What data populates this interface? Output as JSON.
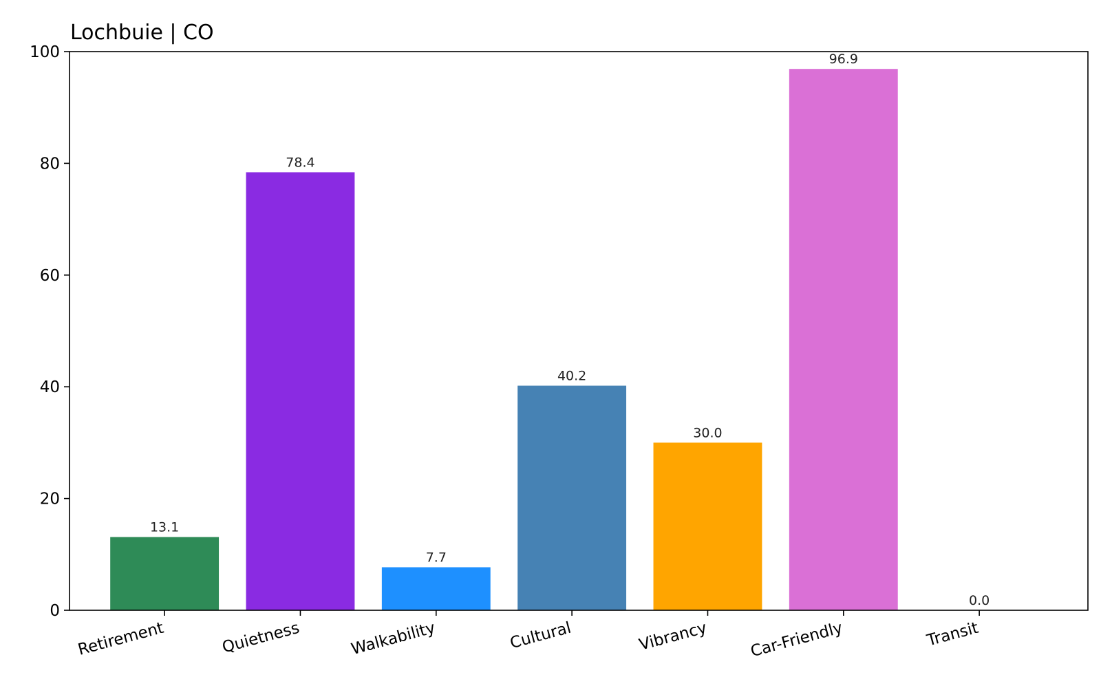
{
  "chart_data": {
    "type": "bar",
    "title": "Lochbuie | CO",
    "xlabel": "",
    "ylabel": "",
    "categories": [
      "Retirement",
      "Quietness",
      "Walkability",
      "Cultural",
      "Vibrancy",
      "Car-Friendly",
      "Transit"
    ],
    "values": [
      13.1,
      78.4,
      7.7,
      40.2,
      30.0,
      96.9,
      0.0
    ],
    "value_labels": [
      "13.1",
      "78.4",
      "7.7",
      "40.2",
      "30.0",
      "96.9",
      "0.0"
    ],
    "colors": [
      "#2e8b57",
      "#8a2be2",
      "#1e90ff",
      "#4682b4",
      "#ffa500",
      "#da70d6",
      "#808080"
    ],
    "ylim": [
      0,
      100
    ],
    "yticks": [
      0,
      20,
      40,
      60,
      80,
      100
    ],
    "ytick_labels": [
      "0",
      "20",
      "40",
      "60",
      "80",
      "100"
    ],
    "grid": false,
    "legend": "none"
  }
}
